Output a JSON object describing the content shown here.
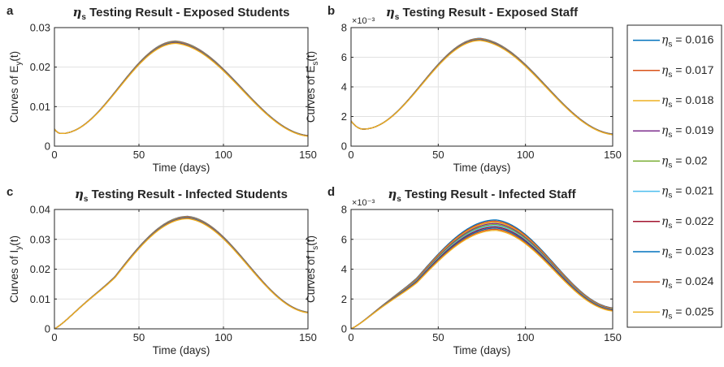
{
  "chart_data": [
    {
      "panel": "a",
      "type": "line",
      "title_symbol": "η",
      "title_subscript": "s",
      "title_rest": " Testing Result - Exposed Students",
      "xlabel": "Time (days)",
      "ylabel_prefix": "Curves of E",
      "ylabel_sub": "y",
      "ylabel_suffix": "(t)",
      "y_exponent": "",
      "xlim": [
        0,
        150
      ],
      "ylim": [
        0,
        0.03
      ],
      "xticks": [
        0,
        50,
        100,
        150
      ],
      "xtick_labels": [
        "0",
        "50",
        "100",
        "150"
      ],
      "yticks": [
        0,
        0.01,
        0.02,
        0.03
      ],
      "ytick_labels": [
        "0",
        "0.01",
        "0.02",
        "0.03"
      ],
      "grid": true,
      "curve": {
        "y0": 0.0043,
        "dip_t": 4,
        "dip_y": 0.0032,
        "peak_t": 72,
        "peak_y": 0.0263,
        "end_y": 0.0026,
        "spread": 0.0006
      }
    },
    {
      "panel": "b",
      "type": "line",
      "title_symbol": "η",
      "title_subscript": "s",
      "title_rest": " Testing Result - Exposed Staff",
      "xlabel": "Time (days)",
      "ylabel_prefix": "Curves of E",
      "ylabel_sub": "s",
      "ylabel_suffix": "(t)",
      "y_exponent": "×10⁻³",
      "xlim": [
        0,
        150
      ],
      "ylim": [
        0,
        8
      ],
      "xticks": [
        0,
        50,
        100,
        150
      ],
      "xtick_labels": [
        "0",
        "50",
        "100",
        "150"
      ],
      "yticks": [
        0,
        2,
        4,
        6,
        8
      ],
      "ytick_labels": [
        "0",
        "2",
        "4",
        "6",
        "8"
      ],
      "grid": true,
      "curve": {
        "y0": 1.7,
        "dip_t": 7,
        "dip_y": 1.15,
        "peak_t": 74,
        "peak_y": 7.2,
        "end_y": 0.8,
        "spread": 0.15
      }
    },
    {
      "panel": "c",
      "type": "line",
      "title_symbol": "η",
      "title_subscript": "s",
      "title_rest": " Testing Result - Infected Students",
      "xlabel": "Time (days)",
      "ylabel_prefix": "Curves of I",
      "ylabel_sub": "y",
      "ylabel_suffix": "(t)",
      "y_exponent": "",
      "xlim": [
        0,
        150
      ],
      "ylim": [
        0,
        0.04
      ],
      "xticks": [
        0,
        50,
        100,
        150
      ],
      "xtick_labels": [
        "0",
        "50",
        "100",
        "150"
      ],
      "yticks": [
        0,
        0.01,
        0.02,
        0.03,
        0.04
      ],
      "ytick_labels": [
        "0",
        "0.01",
        "0.02",
        "0.03",
        "0.04"
      ],
      "grid": true,
      "curve": {
        "y0": 0.0,
        "dip_t": 0,
        "dip_y": 0.0,
        "peak_t": 79,
        "peak_y": 0.0373,
        "end_y": 0.0055,
        "spread": 0.0008
      }
    },
    {
      "panel": "d",
      "type": "line",
      "title_symbol": "η",
      "title_subscript": "s",
      "title_rest": " Testing Result - Infected Staff",
      "xlabel": "Time (days)",
      "ylabel_prefix": "Curves of I",
      "ylabel_sub": "s",
      "ylabel_suffix": "(t)",
      "y_exponent": "×10⁻³",
      "xlim": [
        0,
        150
      ],
      "ylim": [
        0,
        8
      ],
      "xticks": [
        0,
        50,
        100,
        150
      ],
      "xtick_labels": [
        "0",
        "50",
        "100",
        "150"
      ],
      "yticks": [
        0,
        2,
        4,
        6,
        8
      ],
      "ytick_labels": [
        "0",
        "2",
        "4",
        "6",
        "8"
      ],
      "grid": true,
      "curve": {
        "y0": 0.0,
        "dip_t": 0,
        "dip_y": 0.0,
        "peak_t": 83,
        "peak_y": 6.95,
        "end_y": 1.3,
        "spread": 0.7
      }
    }
  ],
  "legend": {
    "placement": "right",
    "symbol": "η",
    "subscript": "s",
    "entries": [
      {
        "value": "0.016",
        "color": "#0072BD"
      },
      {
        "value": "0.017",
        "color": "#D95319"
      },
      {
        "value": "0.018",
        "color": "#EDB120"
      },
      {
        "value": "0.019",
        "color": "#7E2F8E"
      },
      {
        "value": "0.02",
        "color": "#77AC30"
      },
      {
        "value": "0.021",
        "color": "#4DBEEE"
      },
      {
        "value": "0.022",
        "color": "#A2142F"
      },
      {
        "value": "0.023",
        "color": "#0072BD"
      },
      {
        "value": "0.024",
        "color": "#D95319"
      },
      {
        "value": "0.025",
        "color": "#EDB120"
      }
    ]
  }
}
